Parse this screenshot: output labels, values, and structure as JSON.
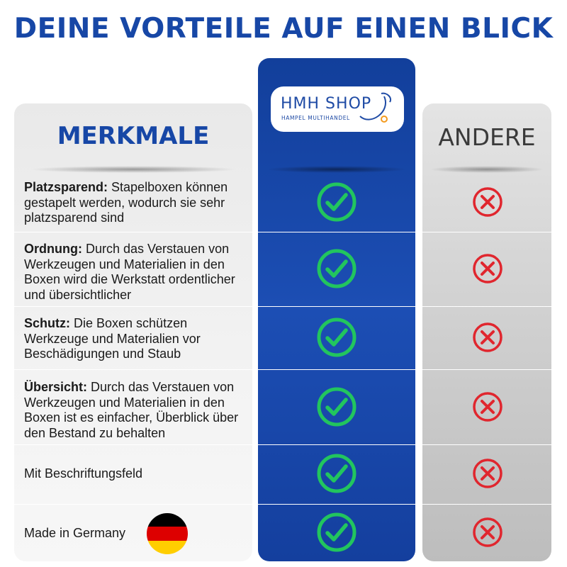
{
  "title": "DEINE VORTEILE AUF EINEN BLICK",
  "columns": {
    "left_header": "MERKMALE",
    "right_header": "ANDERE"
  },
  "logo": {
    "main": "HMH SHOP",
    "sub": "HAMPEL MULTIHANDEL"
  },
  "features": [
    {
      "bold": "Platzsparend:",
      "text": " Stapelboxen können gestapelt werden, wodurch sie sehr platzsparend sind",
      "hmh": "check-icon",
      "andere": "cross-icon"
    },
    {
      "bold": "Ordnung:",
      "text": " Durch das Verstauen von Werkzeugen und Materialien in den Boxen wird die Werkstatt ordentlicher und übersichtlicher",
      "hmh": "check-icon",
      "andere": "cross-icon"
    },
    {
      "bold": "Schutz:",
      "text": " Die Boxen schützen Werkzeuge und Materialien vor Beschädigungen und Staub",
      "hmh": "check-icon",
      "andere": "cross-icon"
    },
    {
      "bold": "Übersicht:",
      "text": " Durch das Verstauen von Werkzeugen und Materialien in den Boxen ist es einfacher, Überblick über den Bestand zu behalten",
      "hmh": "check-icon",
      "andere": "cross-icon"
    },
    {
      "bold": "",
      "text": "Mit Beschriftungsfeld",
      "hmh": "check-icon",
      "andere": "cross-icon"
    },
    {
      "bold": "",
      "text": "Made in Germany",
      "hmh": "check-icon",
      "andere": "cross-icon"
    }
  ],
  "colors": {
    "brand_blue": "#1747a6",
    "check_green": "#22c55e",
    "cross_red": "#e0262e",
    "flag": [
      "#000000",
      "#dd0000",
      "#ffce00"
    ]
  }
}
